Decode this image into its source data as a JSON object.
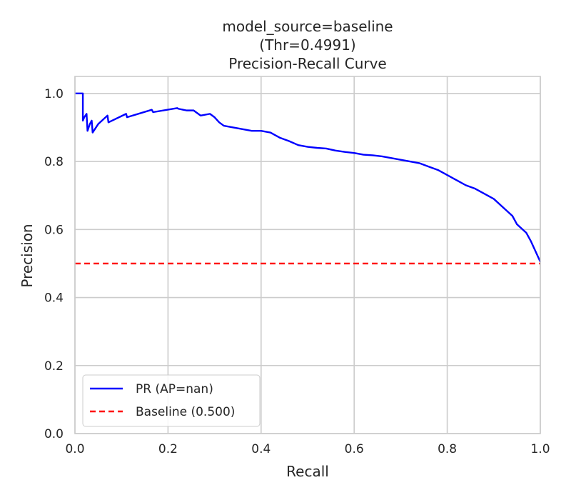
{
  "chart_data": {
    "type": "line",
    "title_lines": [
      "model_source=baseline",
      "(Thr=0.4991)",
      "Precision-Recall Curve"
    ],
    "xlabel": "Recall",
    "ylabel": "Precision",
    "xlim": [
      0.0,
      1.0
    ],
    "ylim": [
      0.0,
      1.05
    ],
    "x_ticks": [
      0.0,
      0.2,
      0.4,
      0.6,
      0.8,
      1.0
    ],
    "x_tick_labels": [
      "0.0",
      "0.2",
      "0.4",
      "0.6",
      "0.8",
      "1.0"
    ],
    "y_ticks": [
      0.0,
      0.2,
      0.4,
      0.6,
      0.8,
      1.0
    ],
    "y_tick_labels": [
      "0.0",
      "0.2",
      "0.4",
      "0.6",
      "0.8",
      "1.0"
    ],
    "grid": true,
    "legend_position": "lower-left",
    "series": [
      {
        "name": "PR (AP=nan)",
        "color": "#0000ff",
        "style": "solid",
        "x": [
          0.0,
          0.017,
          0.017,
          0.02,
          0.025,
          0.027,
          0.032,
          0.036,
          0.038,
          0.05,
          0.07,
          0.072,
          0.11,
          0.112,
          0.165,
          0.168,
          0.22,
          0.222,
          0.24,
          0.255,
          0.27,
          0.29,
          0.3,
          0.31,
          0.32,
          0.34,
          0.36,
          0.38,
          0.4,
          0.42,
          0.44,
          0.46,
          0.48,
          0.5,
          0.52,
          0.54,
          0.56,
          0.58,
          0.6,
          0.62,
          0.64,
          0.66,
          0.68,
          0.7,
          0.72,
          0.74,
          0.76,
          0.78,
          0.8,
          0.82,
          0.84,
          0.86,
          0.88,
          0.9,
          0.92,
          0.94,
          0.95,
          0.97,
          0.98,
          0.99,
          1.0
        ],
        "y": [
          1.0,
          1.0,
          0.92,
          0.93,
          0.94,
          0.89,
          0.91,
          0.92,
          0.885,
          0.91,
          0.935,
          0.915,
          0.94,
          0.93,
          0.952,
          0.945,
          0.957,
          0.955,
          0.95,
          0.95,
          0.935,
          0.94,
          0.93,
          0.915,
          0.905,
          0.9,
          0.895,
          0.89,
          0.89,
          0.885,
          0.87,
          0.86,
          0.848,
          0.843,
          0.84,
          0.838,
          0.832,
          0.828,
          0.825,
          0.82,
          0.818,
          0.815,
          0.81,
          0.805,
          0.8,
          0.795,
          0.785,
          0.775,
          0.76,
          0.745,
          0.73,
          0.72,
          0.705,
          0.69,
          0.665,
          0.64,
          0.615,
          0.59,
          0.565,
          0.535,
          0.505
        ]
      },
      {
        "name": "Baseline (0.500)",
        "color": "#ff0000",
        "style": "dashed",
        "x": [
          0.0,
          1.0
        ],
        "y": [
          0.5,
          0.5
        ]
      }
    ]
  }
}
